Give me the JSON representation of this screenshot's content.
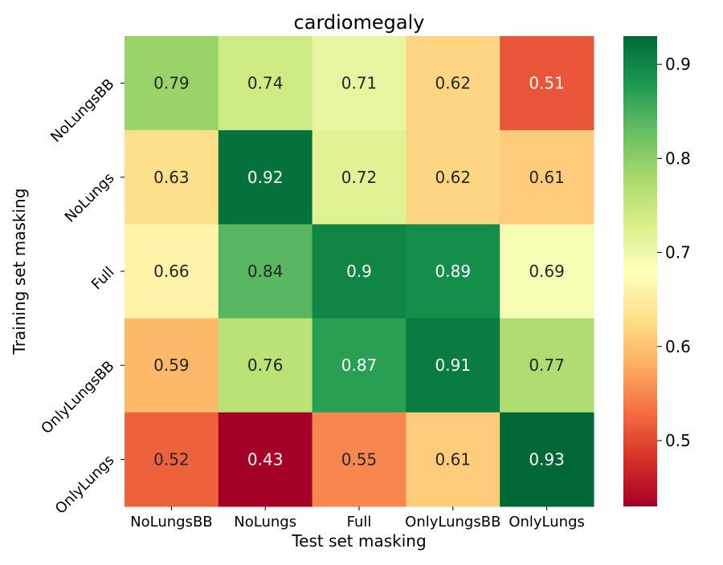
{
  "chart_data": {
    "type": "heatmap",
    "title": "cardiomegaly",
    "xlabel": "Test set masking",
    "ylabel": "Training set masking",
    "x_categories": [
      "NoLungsBB",
      "NoLungs",
      "Full",
      "OnlyLungsBB",
      "OnlyLungs"
    ],
    "y_categories": [
      "NoLungsBB",
      "NoLungs",
      "Full",
      "OnlyLungsBB",
      "OnlyLungs"
    ],
    "values": [
      [
        0.79,
        0.74,
        0.71,
        0.62,
        0.51
      ],
      [
        0.63,
        0.92,
        0.72,
        0.62,
        0.61
      ],
      [
        0.66,
        0.84,
        0.9,
        0.89,
        0.69
      ],
      [
        0.59,
        0.76,
        0.87,
        0.91,
        0.77
      ],
      [
        0.52,
        0.43,
        0.55,
        0.61,
        0.93
      ]
    ],
    "colormap": "RdYlGn",
    "colorbar": {
      "range": [
        0.43,
        0.93
      ],
      "ticks": [
        0.5,
        0.6,
        0.7,
        0.8,
        0.9
      ]
    }
  }
}
